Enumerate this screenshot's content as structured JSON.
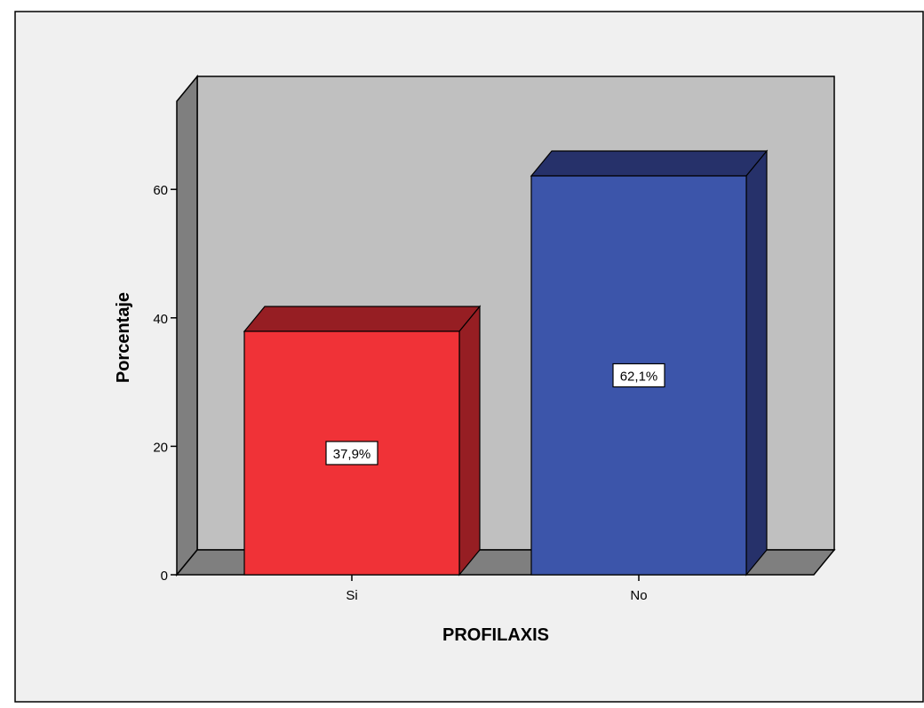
{
  "chart_data": {
    "type": "bar",
    "categories": [
      "Si",
      "No"
    ],
    "values": [
      37.9,
      62.1
    ],
    "data_labels": [
      "37,9%",
      "62,1%"
    ],
    "xlabel": "PROFILAXIS",
    "ylabel": "Porcentaje",
    "ylim": [
      0,
      60
    ],
    "yticks": [
      "0",
      "20",
      "40",
      "60"
    ],
    "style": "3d",
    "grid": false,
    "legend": "none"
  },
  "colors": {
    "background": "#f0f0f0",
    "wall": "#c0c0c0",
    "side_wall": "#7f7f7f",
    "floor": "#7f7f7f",
    "bar_front": [
      "#f03237",
      "#3c55aa"
    ],
    "bar_top": [
      "#961e23",
      "#26316a"
    ],
    "bar_side": [
      "#961e23",
      "#26316a"
    ],
    "label_box": "#ffffff",
    "stroke": "#000000"
  }
}
